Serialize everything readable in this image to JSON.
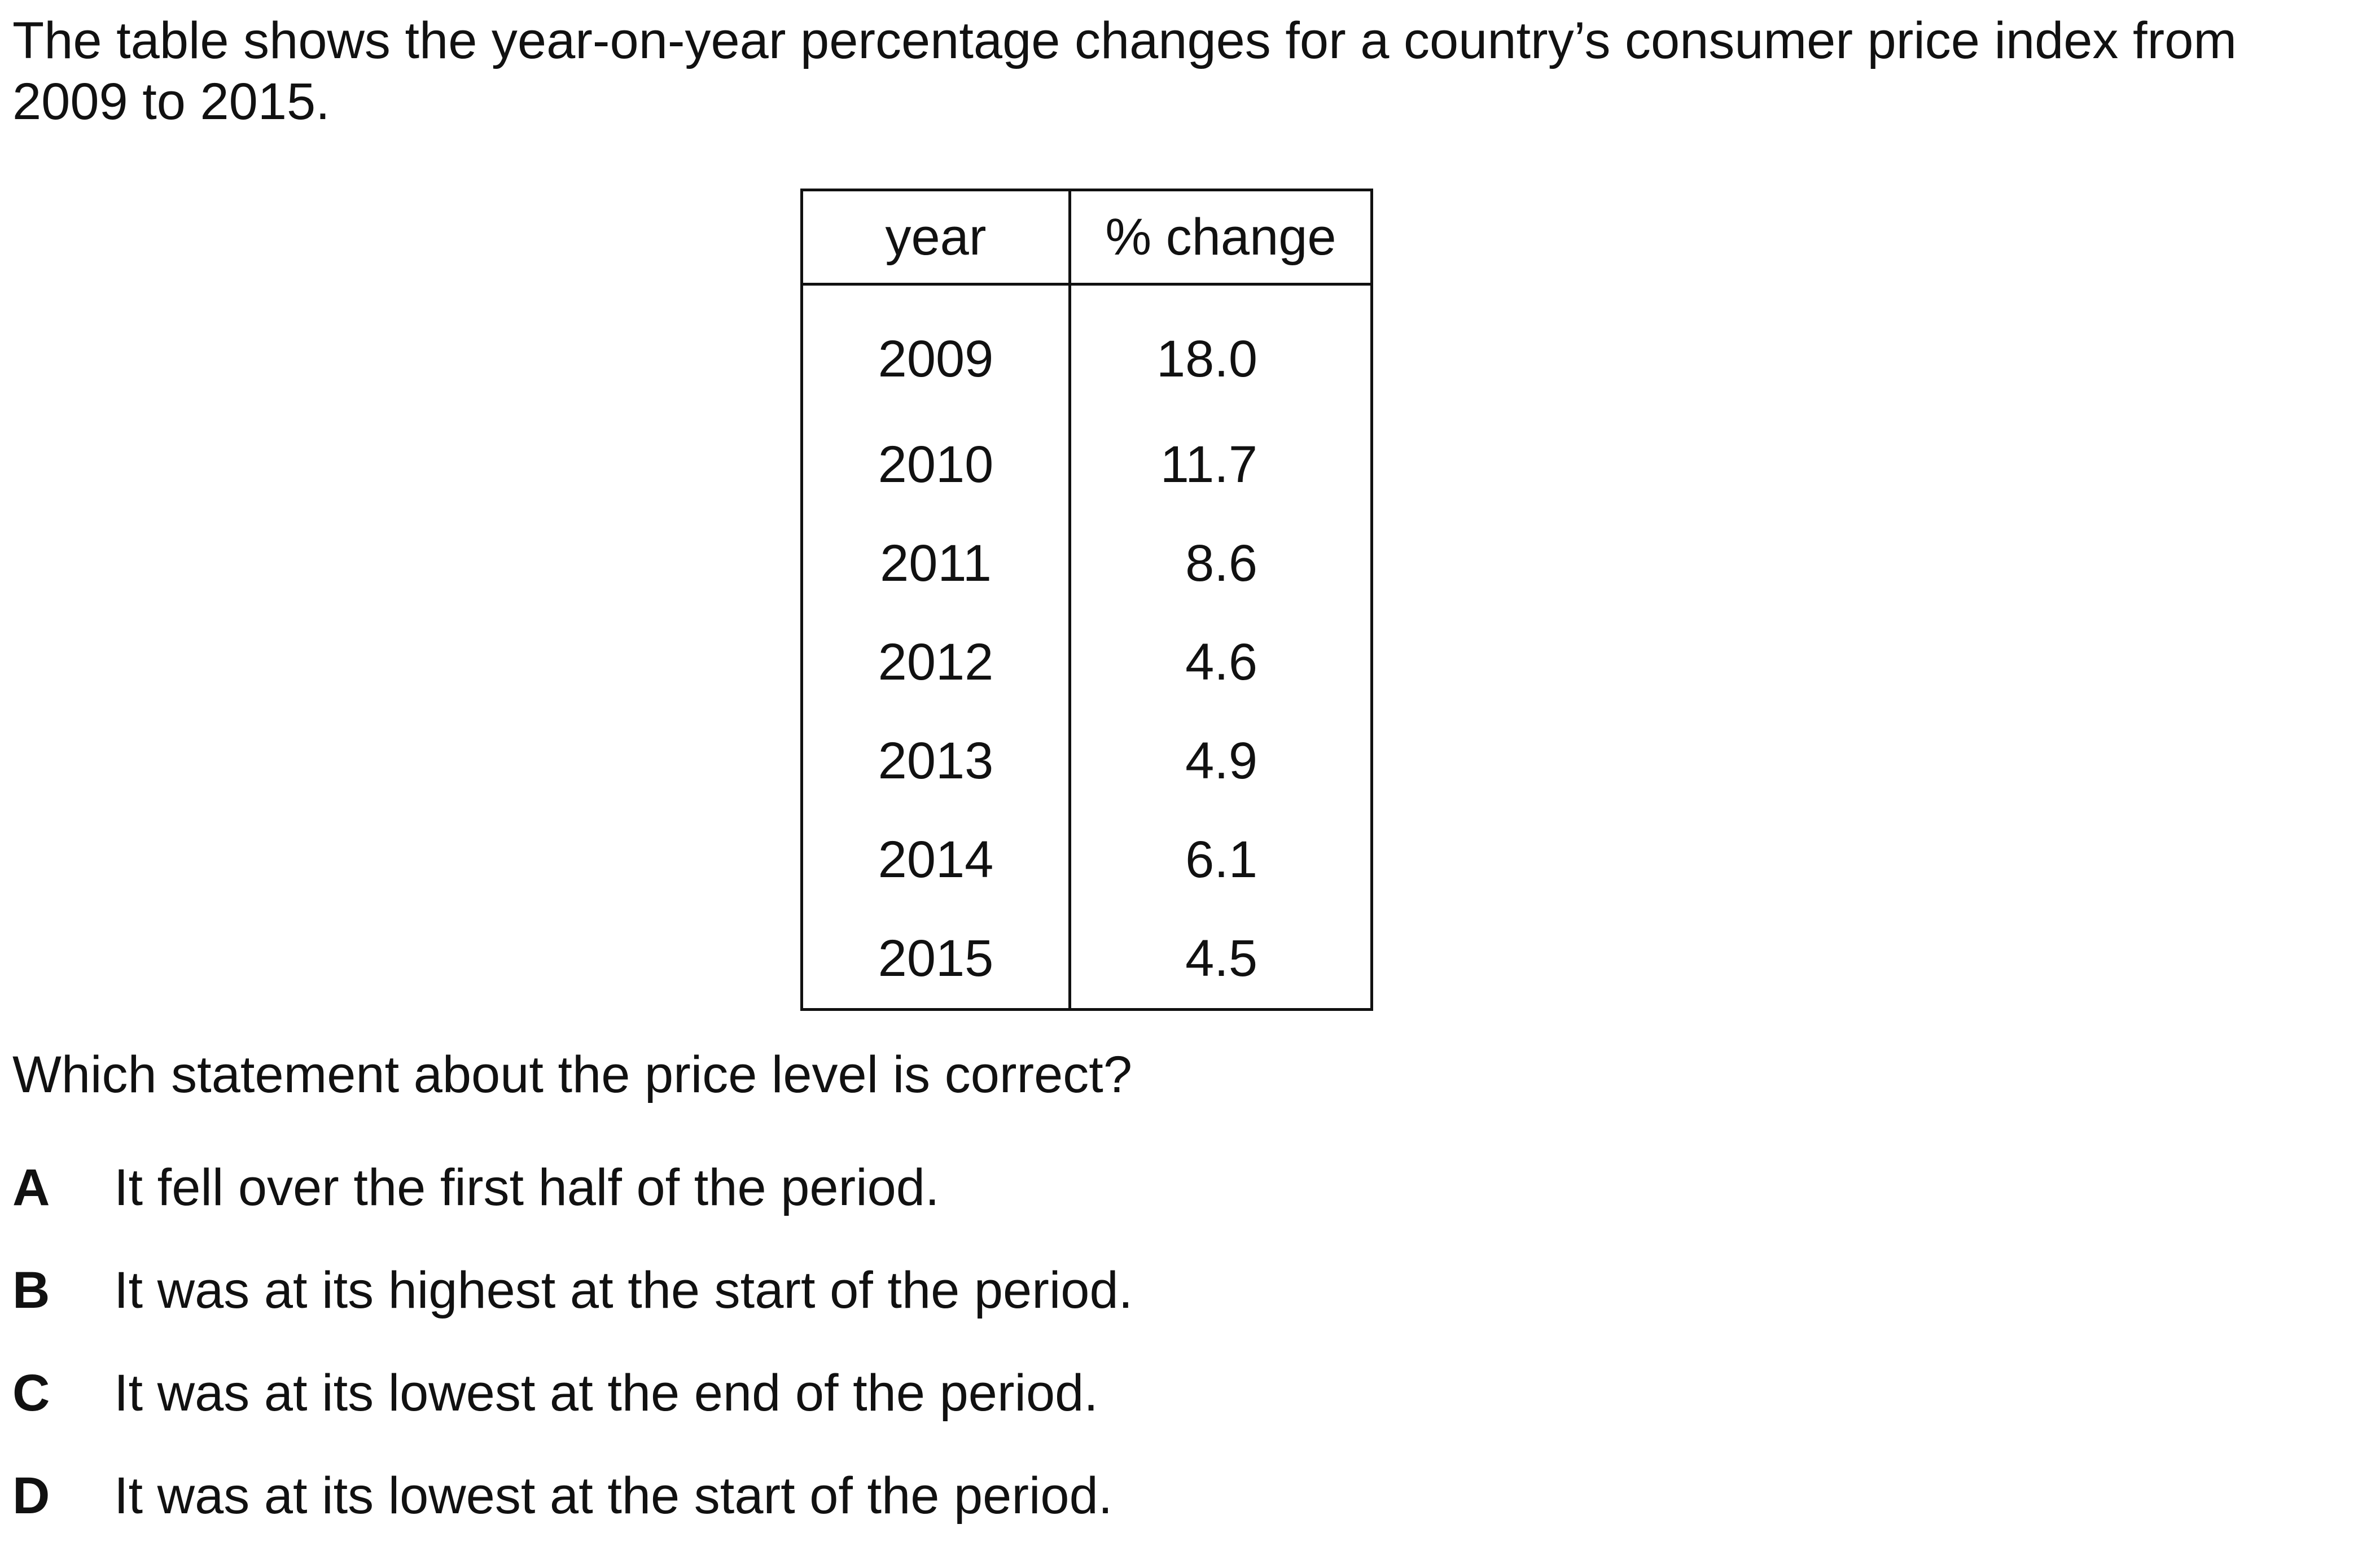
{
  "intro_text": "The table shows the year-on-year percentage changes for a country’s consumer price index from 2009 to 2015.",
  "table": {
    "headers": [
      "year",
      "% change"
    ],
    "rows": [
      [
        "2009",
        "18.0"
      ],
      [
        "2010",
        "11.7"
      ],
      [
        "2011",
        "8.6"
      ],
      [
        "2012",
        "4.6"
      ],
      [
        "2013",
        "4.9"
      ],
      [
        "2014",
        "6.1"
      ],
      [
        "2015",
        "4.5"
      ]
    ]
  },
  "question": "Which statement about the price level is correct?",
  "options": [
    {
      "letter": "A",
      "text": "It fell over the first half of the period."
    },
    {
      "letter": "B",
      "text": "It was at its highest at the start of the period."
    },
    {
      "letter": "C",
      "text": "It was at its lowest at the end of the period."
    },
    {
      "letter": "D",
      "text": "It was at its lowest at the start of the period."
    }
  ]
}
